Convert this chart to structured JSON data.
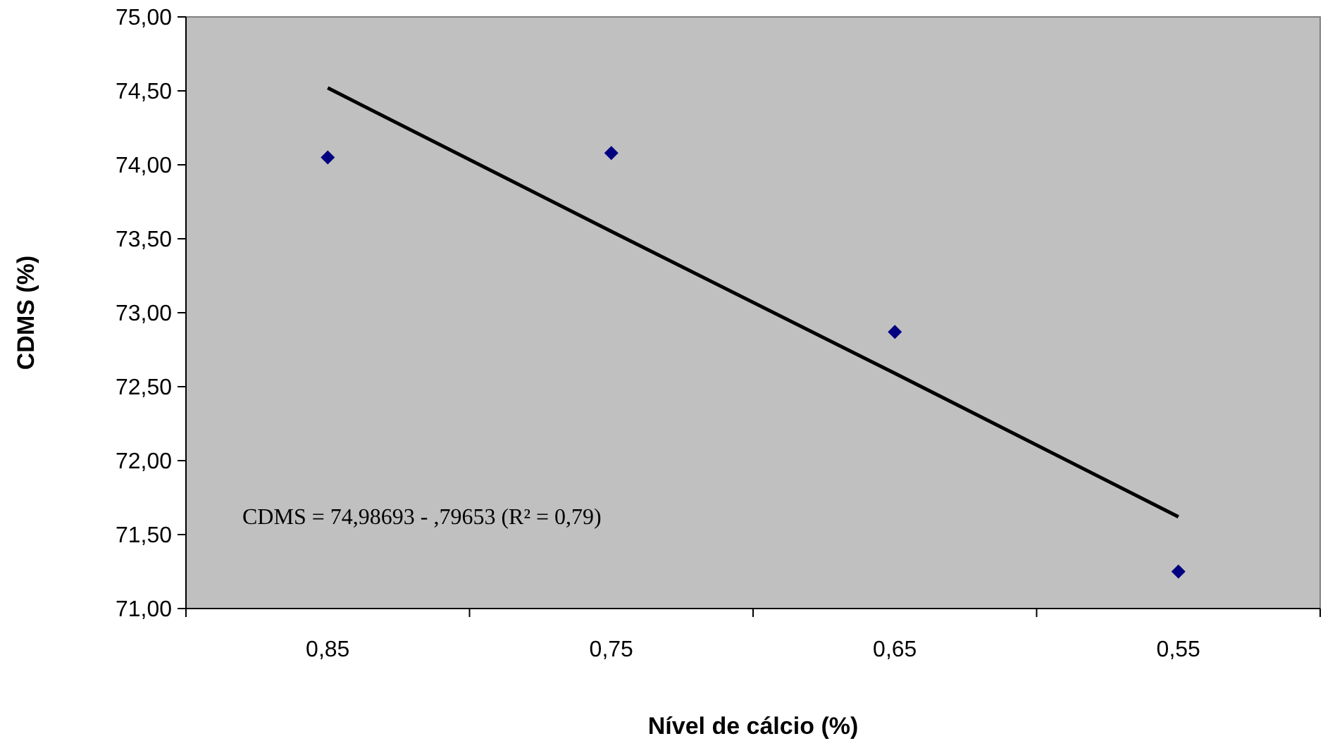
{
  "chart_data": {
    "type": "scatter",
    "xlabel": "Nível de cálcio (%)",
    "ylabel": "CDMS (%)",
    "categories": [
      "0,85",
      "0,75",
      "0,65",
      "0,55"
    ],
    "ylim": [
      71,
      75
    ],
    "yticks": [
      {
        "value": 71,
        "label": "71,00"
      },
      {
        "value": 71.5,
        "label": "71,50"
      },
      {
        "value": 72,
        "label": "72,00"
      },
      {
        "value": 72.5,
        "label": "72,50"
      },
      {
        "value": 73,
        "label": "73,00"
      },
      {
        "value": 73.5,
        "label": "73,50"
      },
      {
        "value": 74,
        "label": "74,00"
      },
      {
        "value": 74.5,
        "label": "74,50"
      },
      {
        "value": 75,
        "label": "75,00"
      }
    ],
    "series": [
      {
        "color": "#000080",
        "marker": "diamond",
        "values": [
          74.05,
          74.08,
          72.87,
          71.25
        ]
      },
      {
        "type": "line",
        "color": "#000000",
        "marker": "none",
        "values": [
          74.52,
          73.55,
          72.59,
          71.62
        ]
      }
    ],
    "annotations": [
      "CDMS = 74,98693 - ,79653 (R² = 0,79)"
    ],
    "grid": false
  }
}
